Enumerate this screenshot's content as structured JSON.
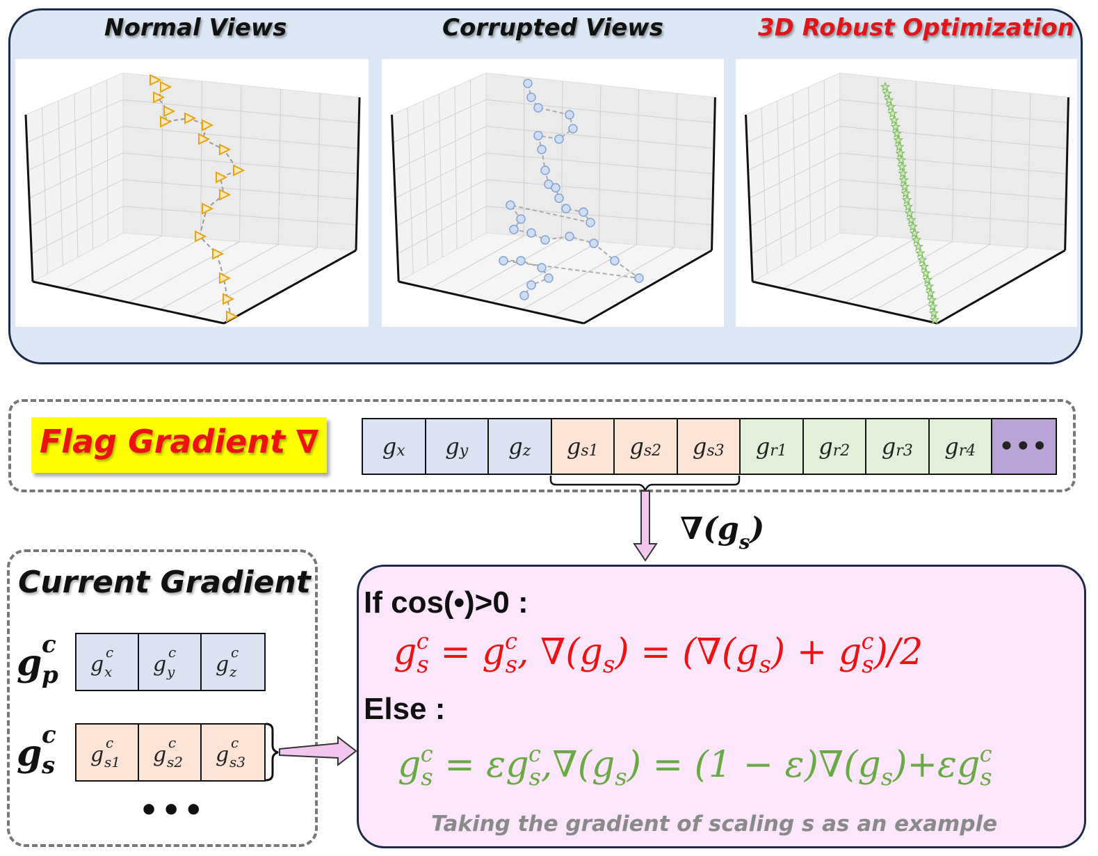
{
  "top_panel": {
    "titles": [
      {
        "text": "Normal Views",
        "color": "#111111"
      },
      {
        "text": "Corrupted Views",
        "color": "#111111"
      },
      {
        "text": "3D Robust Optimization",
        "color": "#e0161b"
      }
    ],
    "trajectory_colors": {
      "normal": "#e8a314",
      "corrupted": "#7ea2d8",
      "robust": "#7bbd5b"
    }
  },
  "flag": {
    "label": "Flag Gradient ∇",
    "cells": [
      {
        "base": "g",
        "sub": "x",
        "color": "#dbe3f3"
      },
      {
        "base": "g",
        "sub": "y",
        "color": "#dbe3f3"
      },
      {
        "base": "g",
        "sub": "z",
        "color": "#dbe3f3"
      },
      {
        "base": "g",
        "sub": "s1",
        "color": "#fbe3d6"
      },
      {
        "base": "g",
        "sub": "s2",
        "color": "#fbe3d6"
      },
      {
        "base": "g",
        "sub": "s3",
        "color": "#fbe3d6"
      },
      {
        "base": "g",
        "sub": "r1",
        "color": "#e2f0da"
      },
      {
        "base": "g",
        "sub": "r2",
        "color": "#e2f0da"
      },
      {
        "base": "g",
        "sub": "r3",
        "color": "#e2f0da"
      },
      {
        "base": "g",
        "sub": "r4",
        "color": "#e2f0da"
      },
      {
        "base": "•••",
        "sub": "",
        "color": "#b9a2d4"
      }
    ],
    "nabla_label": "∇(g",
    "nabla_sub": "s",
    "nabla_close": ")"
  },
  "current": {
    "title": "Current Gradient",
    "p_label": {
      "base": "g",
      "sup": "c",
      "sub": "p"
    },
    "s_label": {
      "base": "g",
      "sup": "c",
      "sub": "s"
    },
    "p_cells": [
      {
        "base": "g",
        "sup": "c",
        "sub": "x"
      },
      {
        "base": "g",
        "sup": "c",
        "sub": "y"
      },
      {
        "base": "g",
        "sup": "c",
        "sub": "z"
      }
    ],
    "s_cells": [
      {
        "base": "g",
        "sup": "c",
        "sub": "s1"
      },
      {
        "base": "g",
        "sup": "c",
        "sub": "s2"
      },
      {
        "base": "g",
        "sup": "c",
        "sub": "s3"
      }
    ],
    "dots": "•••",
    "p_color": "#dbe3f3",
    "s_color": "#fbe3d6"
  },
  "rule": {
    "if_label": "If cos(•)>0 :",
    "else_label": "Else :",
    "if_color": "#ee1111",
    "else_color": "#6aaa46",
    "if_parts": [
      "g",
      "s",
      "c",
      " = g",
      "s",
      "c",
      ", ∇(g",
      "s",
      ") = (∇(g",
      "s",
      ") + g",
      "s",
      "c",
      ")/2"
    ],
    "else_parts": [
      "g",
      "s",
      "c",
      " = εg",
      "s",
      "c",
      ",∇(g",
      "s",
      ") = (1 − ε)∇(g",
      "s",
      ")+εg",
      "s",
      "c"
    ],
    "note": "Taking the gradient of scaling s as an example"
  }
}
